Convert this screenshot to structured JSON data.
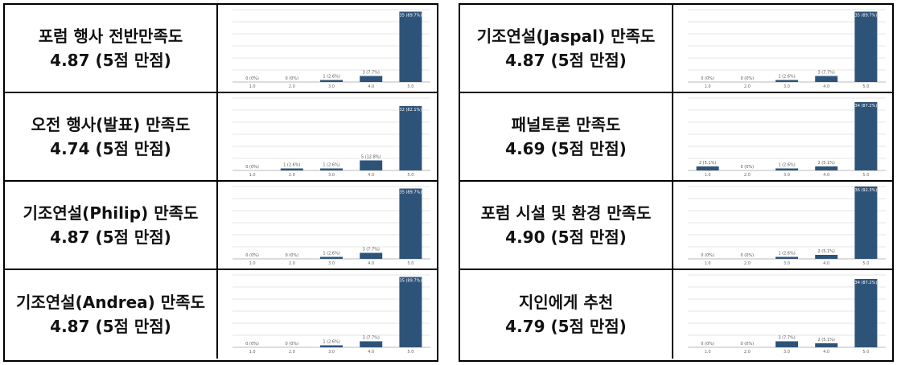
{
  "chart_data": [
    {
      "type": "bar",
      "title": "포럼 행사 전반만족도",
      "subtitle": "4.87 (5점 만점)",
      "categories": [
        "1.0",
        "2.0",
        "3.0",
        "4.0",
        "5.0"
      ],
      "values": [
        0,
        0,
        1,
        3,
        35
      ],
      "labels": [
        "0 (0%)",
        "0 (0%)",
        "1 (2.6%)",
        "3 (7.7%)",
        "35 (89.7%)"
      ]
    },
    {
      "type": "bar",
      "title": "오전 행사(발표) 만족도",
      "subtitle": "4.74 (5점 만점)",
      "categories": [
        "1.0",
        "2.0",
        "3.0",
        "4.0",
        "5.0"
      ],
      "values": [
        0,
        1,
        1,
        5,
        32
      ],
      "labels": [
        "0 (0%)",
        "1 (2.6%)",
        "1 (2.6%)",
        "5 (12.8%)",
        "32 (82.1%)"
      ]
    },
    {
      "type": "bar",
      "title": "기조연설(Philip) 만족도",
      "subtitle": "4.87 (5점 만점)",
      "categories": [
        "1.0",
        "2.0",
        "3.0",
        "4.0",
        "5.0"
      ],
      "values": [
        0,
        0,
        1,
        3,
        35
      ],
      "labels": [
        "0 (0%)",
        "0 (0%)",
        "1 (2.6%)",
        "3 (7.7%)",
        "35 (89.7%)"
      ]
    },
    {
      "type": "bar",
      "title": "기조연설(Andrea) 만족도",
      "subtitle": "4.87 (5점 만점)",
      "categories": [
        "1.0",
        "2.0",
        "3.0",
        "4.0",
        "5.0"
      ],
      "values": [
        0,
        0,
        1,
        3,
        35
      ],
      "labels": [
        "0 (0%)",
        "0 (0%)",
        "1 (2.6%)",
        "3 (7.7%)",
        "35 (89.7%)"
      ]
    },
    {
      "type": "bar",
      "title": "기조연설(Jaspal) 만족도",
      "subtitle": "4.87 (5점 만점)",
      "categories": [
        "1.0",
        "2.0",
        "3.0",
        "4.0",
        "5.0"
      ],
      "values": [
        0,
        0,
        1,
        3,
        35
      ],
      "labels": [
        "0 (0%)",
        "0 (0%)",
        "1 (2.6%)",
        "3 (7.7%)",
        "35 (89.7%)"
      ]
    },
    {
      "type": "bar",
      "title": "패널토론 만족도",
      "subtitle": "4.69 (5점 만점)",
      "categories": [
        "1.0",
        "2.0",
        "3.0",
        "4.0",
        "5.0"
      ],
      "values": [
        2,
        0,
        1,
        2,
        34
      ],
      "labels": [
        "2 (5.1%)",
        "0 (0%)",
        "1 (2.6%)",
        "2 (5.1%)",
        "34 (87.2%)"
      ]
    },
    {
      "type": "bar",
      "title": "포럼 시설 및 환경 만족도",
      "subtitle": "4.90 (5점 만점)",
      "categories": [
        "1.0",
        "2.0",
        "3.0",
        "4.0",
        "5.0"
      ],
      "values": [
        0,
        0,
        1,
        2,
        36
      ],
      "labels": [
        "0 (0%)",
        "0 (0%)",
        "1 (2.6%)",
        "2 (5.1%)",
        "36 (92.3%)"
      ]
    },
    {
      "type": "bar",
      "title": "지인에게 추천",
      "subtitle": "4.79 (5점 만점)",
      "categories": [
        "1.0",
        "2.0",
        "3.0",
        "4.0",
        "5.0"
      ],
      "values": [
        0,
        0,
        3,
        2,
        34
      ],
      "labels": [
        "0 (0%)",
        "0 (0%)",
        "3 (7.7%)",
        "2 (5.1%)",
        "34 (87.2%)"
      ]
    }
  ]
}
